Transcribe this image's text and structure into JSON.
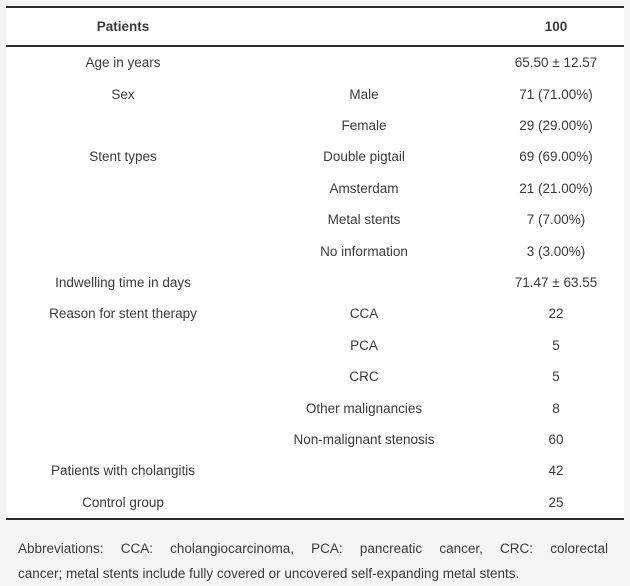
{
  "table": {
    "header": {
      "label": "Patients",
      "value": "100"
    },
    "rows": [
      {
        "category": "Age in years",
        "subcategory": "",
        "value": "65.50 ± 12.57"
      },
      {
        "category": "Sex",
        "subcategory": "Male",
        "value": "71 (71.00%)"
      },
      {
        "category": "",
        "subcategory": "Female",
        "value": "29 (29.00%)"
      },
      {
        "category": "Stent types",
        "subcategory": "Double pigtail",
        "value": "69 (69.00%)"
      },
      {
        "category": "",
        "subcategory": "Amsterdam",
        "value": "21 (21.00%)"
      },
      {
        "category": "",
        "subcategory": "Metal stents",
        "value": "7 (7.00%)"
      },
      {
        "category": "",
        "subcategory": "No information",
        "value": "3 (3.00%)"
      },
      {
        "category": "Indwelling time in days",
        "subcategory": "",
        "value": "71.47 ± 63.55"
      },
      {
        "category": "Reason for stent therapy",
        "subcategory": "CCA",
        "value": "22"
      },
      {
        "category": "",
        "subcategory": "PCA",
        "value": "5"
      },
      {
        "category": "",
        "subcategory": "CRC",
        "value": "5"
      },
      {
        "category": "",
        "subcategory": "Other malignancies",
        "value": "8"
      },
      {
        "category": "",
        "subcategory": "Non-malignant stenosis",
        "value": "60"
      },
      {
        "category": "Patients with cholangitis",
        "subcategory": "",
        "value": "42"
      },
      {
        "category": "Control group",
        "subcategory": "",
        "value": "25"
      }
    ],
    "footnote_lines": [
      "Abbreviations: CCA: cholangiocarcinoma, PCA: pancreatic cancer, CRC: colorectal",
      "cancer; metal stents include fully covered or uncovered self-expanding metal stents."
    ]
  },
  "colors": {
    "page_background": "#f5f5f6",
    "table_background": "#ffffff",
    "border": "#2b2b2b",
    "text": "#3b3b3b"
  }
}
